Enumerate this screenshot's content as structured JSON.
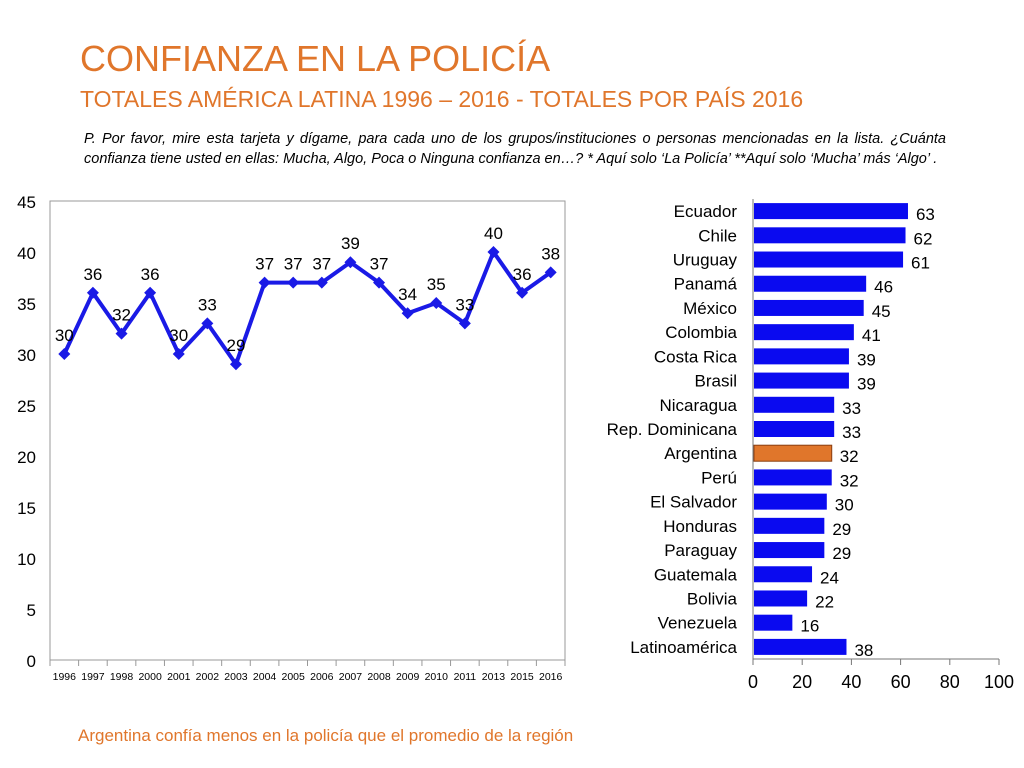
{
  "title": "CONFIANZA EN LA POLICÍA",
  "subtitle": "TOTALES AMÉRICA LATINA 1996 – 2016 - TOTALES POR PAÍS 2016",
  "question": "P. Por favor, mire esta tarjeta y dígame, para cada uno de los grupos/instituciones o personas mencionadas en la lista. ¿Cuánta confianza tiene usted en ellas: Mucha, Algo, Poca o Ninguna confianza en…? * Aquí solo ‘La Policía’ **Aquí solo ‘Mucha’ más ‘Algo’ .",
  "footer": "Argentina confía menos en la policía que el promedio de la región",
  "colors": {
    "accent": "#E0762B",
    "series": "#1A1AE6",
    "bar": "#0A0AF0",
    "highlight": "#E0762B"
  },
  "chart_data": [
    {
      "type": "line",
      "title": "",
      "xlabel": "",
      "ylabel": "",
      "categories": [
        "1996",
        "1997",
        "1998",
        "2000",
        "2001",
        "2002",
        "2003",
        "2004",
        "2005",
        "2006",
        "2007",
        "2008",
        "2009",
        "2010",
        "2011",
        "2013",
        "2015",
        "2016"
      ],
      "series": [
        {
          "name": "Confianza en la Policía",
          "values": [
            30,
            36,
            32,
            36,
            30,
            33,
            29,
            37,
            37,
            37,
            39,
            37,
            34,
            35,
            33,
            40,
            36,
            38
          ]
        }
      ],
      "ylim": [
        0,
        45
      ],
      "yticks": [
        0,
        5,
        10,
        15,
        20,
        25,
        30,
        35,
        40,
        45
      ],
      "data_labels": true,
      "marker": "diamond"
    },
    {
      "type": "bar",
      "orientation": "horizontal",
      "title": "",
      "xlabel": "",
      "ylabel": "",
      "categories": [
        "Ecuador",
        "Chile",
        "Uruguay",
        "Panamá",
        "México",
        "Colombia",
        "Costa Rica",
        "Brasil",
        "Nicaragua",
        "Rep. Dominicana",
        "Argentina",
        "Perú",
        "El Salvador",
        "Honduras",
        "Paraguay",
        "Guatemala",
        "Bolivia",
        "Venezuela",
        "Latinoamérica"
      ],
      "values": [
        63,
        62,
        61,
        46,
        45,
        41,
        39,
        39,
        33,
        33,
        32,
        32,
        30,
        29,
        29,
        24,
        22,
        16,
        38
      ],
      "highlight": "Argentina",
      "xlim": [
        0,
        100
      ],
      "xticks": [
        0,
        20,
        40,
        60,
        80,
        100
      ],
      "data_labels": true
    }
  ]
}
